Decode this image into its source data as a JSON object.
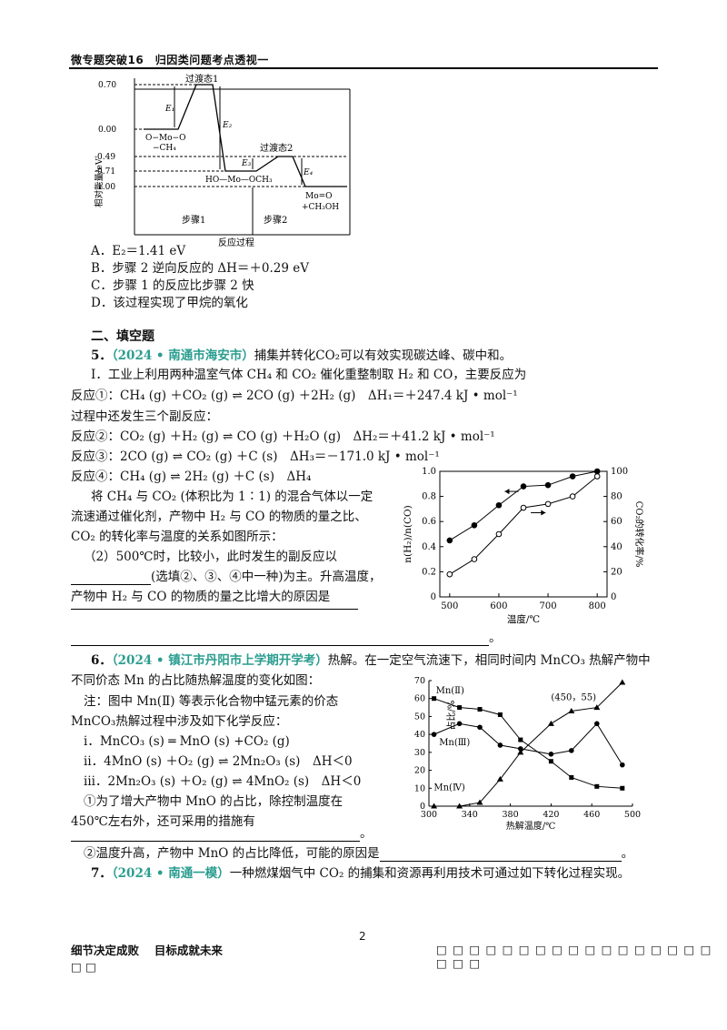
{
  "header": {
    "title": "微专题突破16　归因类问题考点透视一"
  },
  "energy_diagram": {
    "ylabel": "相对能量/eV",
    "xlabel": "反应过程",
    "ticks": [
      "0.70",
      "0.00",
      "-0.49",
      "-0.71",
      "-1.00"
    ],
    "ts1": "过渡态1",
    "ts2": "过渡态2",
    "e1": "E₁",
    "e2": "E₂",
    "e3": "E₃",
    "e4": "E₄",
    "species1_a": "O−Mo−O",
    "species1_b": "−CH₄",
    "species2": "HO—Mo—OCH₃",
    "species3_a": "Mo=O",
    "species3_b": "+CH₃OH",
    "step1": "步骤1",
    "step2": "步骤2"
  },
  "q4_options": [
    "A．E₂＝1.41 eV",
    "B．步骤 2 逆向反应的 ΔH＝＋0.29 eV",
    "C．步骤 1 的反应比步骤 2 快",
    "D．该过程实现了甲烷的氧化"
  ],
  "section2": {
    "title": "二、填空题"
  },
  "q5": {
    "num": "5．",
    "source": "（2024 • 南通市海安市）",
    "intro": "捕集并转化CO₂可以有效实现碳达峰、碳中和。",
    "part1": "Ⅰ．工业上利用两种温室气体 CH₄ 和 CO₂ 催化重整制取 H₂ 和 CO，主要反应为",
    "r1": "反应①：CH₄ (g) ＋CO₂ (g) ⇌ 2CO (g) ＋2H₂ (g)　ΔH₁＝＋247.4  kJ • mol⁻¹",
    "side": "过程中还发生三个副反应：",
    "r2": "反应②：CO₂ (g) ＋H₂ (g) ⇌ CO (g) ＋H₂O (g)　ΔH₂＝＋41.2  kJ • mol⁻¹",
    "r3": "反应③：2CO (g) ⇌ CO₂ (g) ＋C (s)　ΔH₃＝－171.0  kJ • mol⁻¹",
    "r4": "反应④：CH₄ (g) ⇌ 2H₂ (g) ＋C (s)　ΔH₄",
    "p1": "将 CH₄ 与 CO₂ (体积比为 1∶1) 的混合气体以一定",
    "p2": "流速通过催化剂，产物中 H₂ 与 CO 的物质的量之比、",
    "p3": "CO₂ 的转化率与温度的关系如图所示：",
    "q2a": "（2）500℃时，比较小，此时发生的副反应以",
    "q2b": "(选填②、③、④中一种)为主。升高温度，",
    "q2c": "产物中 H₂ 与 CO 的物质的量之比增大的原因是",
    "end": "。"
  },
  "chart_data": [
    {
      "type": "line",
      "xlabel": "温度/℃",
      "ylabel": "n(H₂)/n(CO)",
      "y2label": "CO₂的转化率/%",
      "x": [
        500,
        550,
        600,
        650,
        700,
        750,
        800
      ],
      "xlim": [
        480,
        820
      ],
      "ylim": [
        0,
        1.0
      ],
      "y2lim": [
        0,
        100
      ],
      "x_ticks": [
        "500",
        "600",
        "700",
        "800"
      ],
      "y_ticks": [
        "0",
        "0.2",
        "0.4",
        "0.6",
        "0.8",
        "1.0"
      ],
      "y2_ticks": [
        "0",
        "20",
        "40",
        "60",
        "80",
        "100"
      ],
      "series": [
        {
          "marker": "filled",
          "axis": "left",
          "values": [
            0.45,
            0.57,
            0.73,
            0.88,
            0.89,
            0.96,
            1.0
          ]
        },
        {
          "marker": "open",
          "axis": "right",
          "values": [
            18,
            30,
            50,
            71,
            74,
            80,
            96
          ]
        }
      ]
    },
    {
      "type": "line",
      "xlabel": "热解温度/℃",
      "ylabel": "占比/%",
      "x": [
        300,
        340,
        360,
        380,
        400,
        420,
        440,
        460,
        480
      ],
      "xlim": [
        300,
        500
      ],
      "ylim": [
        0,
        70
      ],
      "x_ticks": [
        "300",
        "340",
        "380",
        "420",
        "460",
        "500"
      ],
      "y_ticks": [
        "0",
        "10",
        "20",
        "30",
        "40",
        "50",
        "60",
        "70"
      ],
      "annotation": "(450，55)",
      "series": [
        {
          "name": "Mn(Ⅱ)",
          "x": [
            305,
            330,
            350,
            370,
            390,
            420,
            440,
            465,
            490
          ],
          "values": [
            60,
            55,
            54,
            51,
            37,
            25,
            16,
            11,
            10
          ]
        },
        {
          "name": "Mn(Ⅲ)",
          "x": [
            305,
            330,
            350,
            370,
            390,
            420,
            440,
            465,
            490
          ],
          "values": [
            40,
            46,
            44,
            34,
            32,
            29,
            31,
            46,
            23
          ]
        },
        {
          "name": "Mn(Ⅳ)",
          "x": [
            305,
            330,
            350,
            370,
            390,
            420,
            440,
            465,
            490
          ],
          "values": [
            0,
            0,
            2,
            15,
            30,
            46,
            53,
            55,
            69
          ]
        }
      ]
    }
  ],
  "q6": {
    "num": "6．",
    "source": "（2024 • 镇江市丹阳市上学期开学考）",
    "intro": "热解。在一定空气流速下，相同时间内 MnCO₃ 热解产物中",
    "l2": "不同价态 Mn 的占比随热解温度的变化如图：",
    "note1": "注：图中 Mn(Ⅱ) 等表示化合物中锰元素的价态",
    "note2": "MnCO₃热解过程中涉及如下化学反应：",
    "ri": "ⅰ．MnCO₃ (s) ═ MnO (s) +CO₂ (g)",
    "rii": "ⅱ．4MnO (s) ＋O₂ (g) ⇌ 2Mn₂O₃ (s)　ΔH＜0",
    "riii": "ⅲ．2Mn₂O₃ (s) ＋O₂ (g) ⇌ 4MnO₂ (s)　ΔH＜0",
    "q1a": "①为了增大产物中 MnO 的占比，除控制温度在",
    "q1b": "450℃左右外，还可采用的措施有",
    "q2": "②温度升高，产物中 MnO 的占比降低，可能的原因是",
    "end": "。"
  },
  "q7": {
    "num": "7．",
    "source": "（2024 • 南通一模）",
    "intro": "一种燃煤烟气中 CO₂ 的捕集和资源再利用技术可通过如下转化过程实现。"
  },
  "footer": {
    "page": "2",
    "left1": "细节决定成败　 目标成就未来",
    "left2": "□ □",
    "right": "□ □ □ □ □ □ □ □ □ □ □ □ □ □ □ □ □ □ □ □"
  }
}
